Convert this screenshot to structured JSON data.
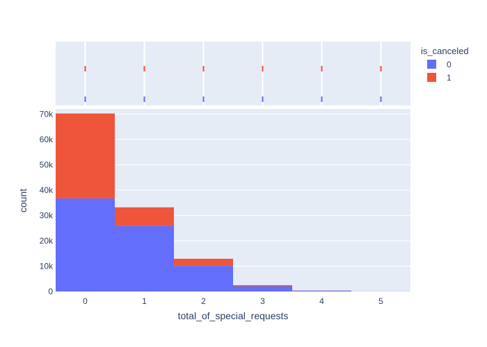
{
  "chart_data": {
    "type": "bar",
    "barmode": "stack",
    "title": "",
    "xlabel": "total_of_special_requests",
    "ylabel": "count",
    "categories": [
      "0",
      "1",
      "2",
      "3",
      "4",
      "5"
    ],
    "x": [
      0,
      1,
      2,
      3,
      4,
      5
    ],
    "ylim": [
      0,
      72000
    ],
    "yticks": [
      0,
      10000,
      20000,
      30000,
      40000,
      50000,
      60000,
      70000
    ],
    "ytick_labels": [
      "0",
      "10k",
      "20k",
      "30k",
      "40k",
      "50k",
      "60k",
      "70k"
    ],
    "xtick_labels": [
      "0",
      "1",
      "2",
      "3",
      "4",
      "5"
    ],
    "grid": true,
    "legend": {
      "title": "is_canceled",
      "position": "top-right"
    },
    "series": [
      {
        "name": "0",
        "color": "#636efa",
        "values": [
          36700,
          25900,
          10100,
          2050,
          340,
          38
        ]
      },
      {
        "name": "1",
        "color": "#ef553b",
        "values": [
          33500,
          7300,
          2800,
          440,
          40,
          2
        ]
      }
    ],
    "rug": {
      "type": "rug",
      "x": [
        0,
        1,
        2,
        3,
        4,
        5
      ],
      "series": [
        "1",
        "0"
      ]
    }
  },
  "colors": {
    "plot_bg": "#e5ecf6",
    "grid": "#ffffff",
    "text": "#2a3f5f"
  }
}
